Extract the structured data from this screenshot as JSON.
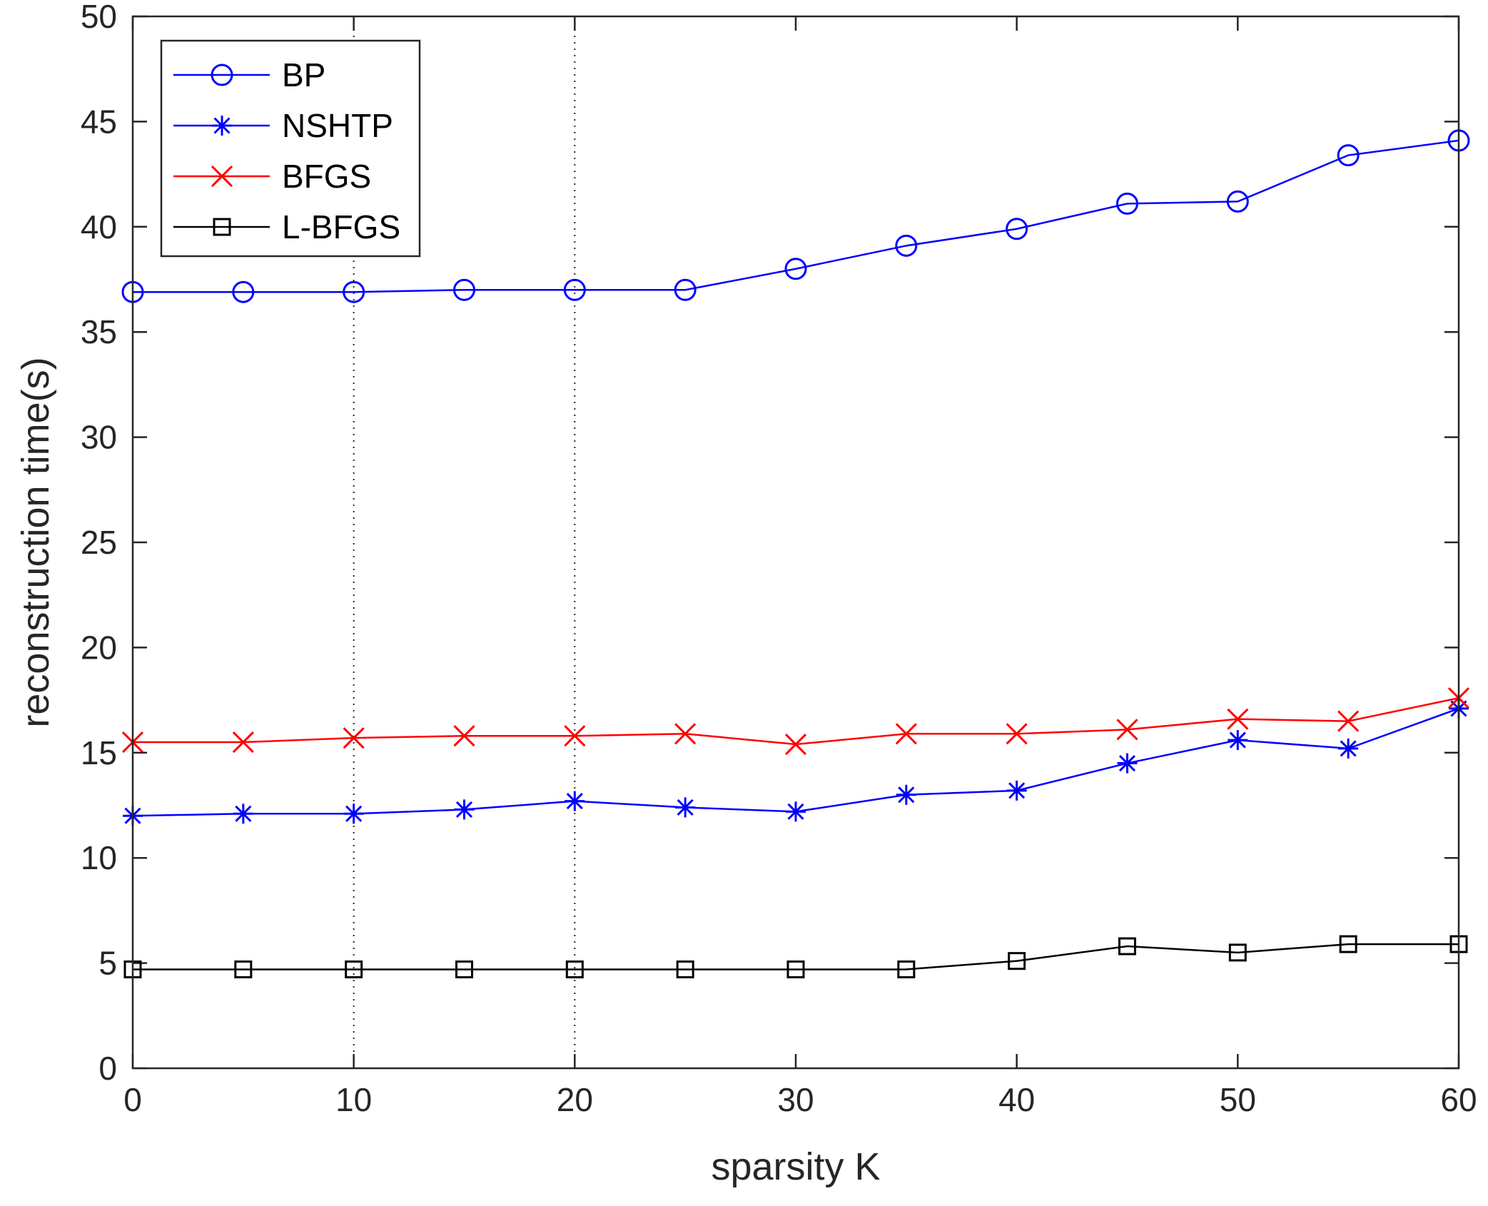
{
  "chart_data": {
    "type": "line",
    "title": "",
    "xlabel": "sparsity K",
    "ylabel": "reconstruction time(s)",
    "xlim": [
      0,
      60
    ],
    "ylim": [
      0,
      50
    ],
    "xticks": [
      0,
      10,
      20,
      30,
      40,
      50,
      60
    ],
    "yticks": [
      0,
      5,
      10,
      15,
      20,
      25,
      30,
      35,
      40,
      45,
      50
    ],
    "vertical_dotted_lines": [
      10,
      20
    ],
    "legend_position": "top-left",
    "x": [
      0,
      5,
      10,
      15,
      20,
      25,
      30,
      35,
      40,
      45,
      50,
      55,
      60
    ],
    "series": [
      {
        "name": "BP",
        "color": "#0000ff",
        "marker": "circle",
        "values": [
          36.9,
          36.9,
          36.9,
          37.0,
          37.0,
          37.0,
          38.0,
          39.1,
          39.9,
          41.1,
          41.2,
          43.4,
          44.1
        ]
      },
      {
        "name": "NSHTP",
        "color": "#0000ff",
        "marker": "asterisk",
        "values": [
          12.0,
          12.1,
          12.1,
          12.3,
          12.7,
          12.4,
          12.2,
          13.0,
          13.2,
          14.5,
          15.6,
          15.2,
          17.1
        ]
      },
      {
        "name": "BFGS",
        "color": "#ff0000",
        "marker": "x",
        "values": [
          15.5,
          15.5,
          15.7,
          15.8,
          15.8,
          15.9,
          15.4,
          15.9,
          15.9,
          16.1,
          16.6,
          16.5,
          17.6
        ]
      },
      {
        "name": "L-BFGS",
        "color": "#000000",
        "marker": "square",
        "values": [
          4.7,
          4.7,
          4.7,
          4.7,
          4.7,
          4.7,
          4.7,
          4.7,
          5.1,
          5.8,
          5.5,
          5.9,
          5.9
        ]
      }
    ]
  }
}
